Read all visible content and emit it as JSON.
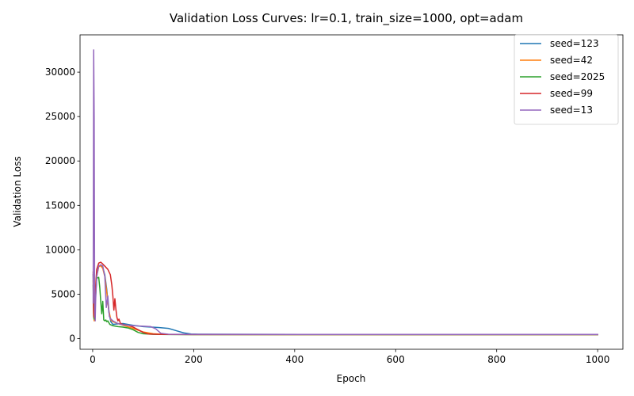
{
  "chart_data": {
    "type": "line",
    "title": "Validation Loss Curves: lr=0.1, train_size=1000, opt=adam",
    "xlabel": "Epoch",
    "ylabel": "Validation Loss",
    "xlim": [
      -25,
      1050
    ],
    "ylim": [
      -1200,
      34200
    ],
    "xticks": [
      0,
      200,
      400,
      600,
      800,
      1000
    ],
    "yticks": [
      0,
      5000,
      10000,
      15000,
      20000,
      25000,
      30000
    ],
    "grid": false,
    "legend_position": "top-right",
    "series": [
      {
        "name": "seed=123",
        "color": "#1f77b4",
        "x": [
          1,
          2,
          3,
          5,
          8,
          12,
          16,
          20,
          24,
          28,
          32,
          36,
          40,
          48,
          60,
          80,
          100,
          130,
          150,
          165,
          180,
          195,
          210,
          300,
          500,
          700,
          900,
          1000
        ],
        "y": [
          7200,
          3000,
          2300,
          4800,
          7300,
          8100,
          8300,
          8000,
          7200,
          5500,
          3000,
          1900,
          1600,
          1650,
          1700,
          1500,
          1350,
          1250,
          1150,
          900,
          650,
          520,
          500,
          480,
          470,
          460,
          460,
          460
        ]
      },
      {
        "name": "seed=42",
        "color": "#ff7f0e",
        "x": [
          1,
          2,
          3,
          5,
          8,
          12,
          16,
          20,
          24,
          28,
          32,
          36,
          40,
          50,
          60,
          80,
          100,
          120,
          140,
          200,
          400,
          600,
          800,
          1000
        ],
        "y": [
          6500,
          2600,
          2000,
          4500,
          7000,
          8100,
          8200,
          7900,
          7000,
          5200,
          3200,
          2100,
          1900,
          1700,
          1500,
          1150,
          750,
          550,
          480,
          460,
          450,
          450,
          450,
          450
        ]
      },
      {
        "name": "seed=2025",
        "color": "#2ca02c",
        "x": [
          1,
          2,
          3,
          5,
          8,
          12,
          14,
          16,
          18,
          20,
          22,
          24,
          26,
          28,
          30,
          34,
          40,
          50,
          60,
          70,
          80,
          90,
          100,
          120,
          150,
          200,
          400,
          600,
          800,
          1000
        ],
        "y": [
          6000,
          2500,
          2200,
          4000,
          6800,
          6900,
          5800,
          4200,
          2800,
          4200,
          2100,
          2000,
          2100,
          1900,
          2000,
          1600,
          1450,
          1350,
          1300,
          1200,
          1000,
          700,
          550,
          480,
          460,
          450,
          450,
          450,
          450,
          450
        ]
      },
      {
        "name": "seed=99",
        "color": "#d62728",
        "x": [
          1,
          2,
          3,
          5,
          8,
          12,
          16,
          20,
          25,
          30,
          35,
          38,
          40,
          42,
          44,
          46,
          48,
          50,
          52,
          55,
          60,
          70,
          80,
          90,
          100,
          110,
          130,
          150,
          200,
          400,
          600,
          800,
          1000
        ],
        "y": [
          7500,
          2800,
          2400,
          5000,
          7800,
          8500,
          8600,
          8400,
          8100,
          7800,
          7200,
          6000,
          4800,
          3200,
          4500,
          3300,
          2400,
          2000,
          2200,
          1700,
          1600,
          1500,
          1300,
          1000,
          700,
          520,
          480,
          470,
          460,
          460,
          460,
          460,
          460
        ]
      },
      {
        "name": "seed=13",
        "color": "#9467bd",
        "x": [
          1,
          2,
          3,
          4,
          5,
          6,
          8,
          12,
          16,
          20,
          24,
          27,
          30,
          33,
          36,
          40,
          50,
          60,
          80,
          100,
          115,
          125,
          135,
          150,
          200,
          400,
          600,
          800,
          1000
        ],
        "y": [
          4000,
          32500,
          25000,
          3000,
          2000,
          4500,
          7000,
          8200,
          8300,
          8200,
          7000,
          3500,
          4800,
          2500,
          2200,
          2000,
          1700,
          1550,
          1450,
          1400,
          1350,
          1100,
          600,
          500,
          480,
          470,
          470,
          470,
          470
        ]
      }
    ]
  }
}
